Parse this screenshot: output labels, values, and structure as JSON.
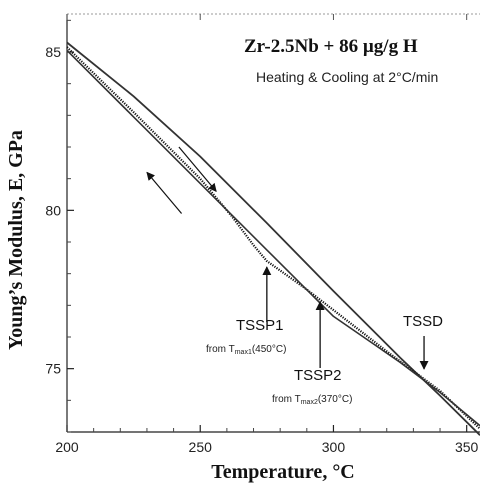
{
  "chart_data": {
    "type": "line",
    "title": "Zr-2.5Nb + 86 µg/g H",
    "subtitle": "Heating & Cooling at 2°C/min",
    "xlabel": "Temperature, °C",
    "ylabel": "Young’s Modulus, E, GPa",
    "xlim": [
      200,
      355
    ],
    "ylim": [
      73,
      86.2
    ],
    "x_ticks": [
      200,
      250,
      300,
      350
    ],
    "y_ticks": [
      75,
      80,
      85
    ],
    "x_tick_labels": [
      "200",
      "250",
      "300",
      "350"
    ],
    "y_tick_labels": [
      "75",
      "80",
      "85"
    ],
    "grid": false,
    "series": [
      {
        "name": "",
        "x": [
          200,
          225,
          250,
          275,
          300,
          325,
          340,
          355
        ],
        "y": [
          85.3,
          83.6,
          81.7,
          79.6,
          77.45,
          75.35,
          74.15,
          72.9
        ]
      },
      {
        "name": "",
        "x": [
          200,
          225,
          250,
          262,
          270,
          275,
          290,
          300,
          320,
          340,
          355
        ],
        "y": [
          85.15,
          83.1,
          81.0,
          79.8,
          78.9,
          78.4,
          77.5,
          76.85,
          75.55,
          74.3,
          73.1
        ]
      },
      {
        "name": "",
        "x": [
          200,
          225,
          250,
          275,
          300,
          325,
          340,
          355
        ],
        "y": [
          85.05,
          82.95,
          80.85,
          78.75,
          76.65,
          75.2,
          74.25,
          73.2
        ]
      }
    ],
    "annotations": [
      {
        "id": "tssp1",
        "label": "TSSP1",
        "sub_prefix": "from T",
        "sub_subscript": "max1",
        "sub_suffix": "(450°C)",
        "x": 275,
        "y": 78.4
      },
      {
        "id": "tssp2",
        "label": "TSSP2",
        "sub_prefix": "from T",
        "sub_subscript": "max2",
        "sub_suffix": "(370°C)",
        "x": 295,
        "y": 77.3
      },
      {
        "id": "tssd",
        "label": "TSSD",
        "x": 334,
        "y": 74.8
      }
    ],
    "direction_arrows": [
      {
        "id": "heating",
        "meaning": "heating",
        "from": [
          242,
          82.0
        ],
        "to": [
          256,
          80.6
        ]
      },
      {
        "id": "cooling",
        "meaning": "cooling",
        "from": [
          243,
          79.9
        ],
        "to": [
          230,
          81.2
        ]
      }
    ]
  }
}
